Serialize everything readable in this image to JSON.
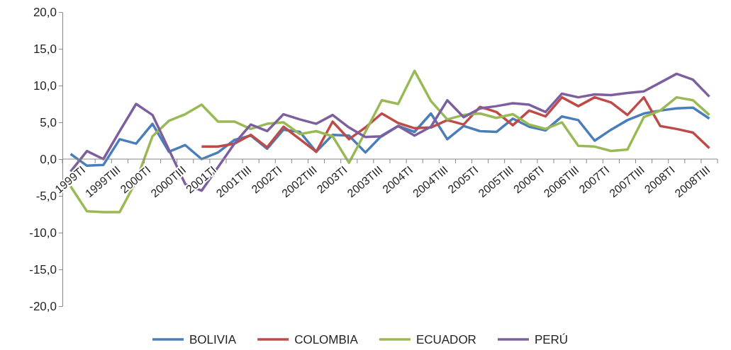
{
  "chart_data": {
    "type": "line",
    "categories": [
      "1999TI",
      null,
      "1999TIII",
      null,
      "2000TI",
      null,
      "2000TIII",
      null,
      "2001TI",
      null,
      "2001TIII",
      null,
      "2002TI",
      null,
      "2002TIII",
      null,
      "2003TI",
      null,
      "2003TIII",
      null,
      "2004TI",
      null,
      "2004TIII",
      null,
      "2005TI",
      null,
      "2005TIII",
      null,
      "2006TI",
      null,
      "2006TIII",
      null,
      "2007TI",
      null,
      "2007TIII",
      null,
      "2008TI",
      null,
      "2008TIII",
      null
    ],
    "series": [
      {
        "name": "BOLIVIA",
        "color": "#4a7ebb",
        "values": [
          0.7,
          -0.9,
          -0.8,
          2.7,
          2.1,
          4.8,
          1.0,
          1.9,
          0.0,
          0.9,
          2.6,
          3.2,
          1.4,
          4.0,
          3.7,
          1.0,
          3.3,
          3.2,
          0.9,
          3.2,
          4.5,
          3.7,
          6.2,
          2.7,
          4.5,
          3.8,
          3.7,
          5.5,
          4.4,
          3.9,
          5.8,
          5.3,
          2.5,
          4.0,
          5.3,
          6.2,
          6.6,
          6.9,
          7.0,
          5.5
        ]
      },
      {
        "name": "COLOMBIA",
        "color": "#be4b48",
        "values": [
          null,
          null,
          null,
          null,
          null,
          null,
          null,
          null,
          1.7,
          1.7,
          2.1,
          3.3,
          1.6,
          4.4,
          2.7,
          1.0,
          5.1,
          2.7,
          4.3,
          6.2,
          4.9,
          4.2,
          4.3,
          5.3,
          4.7,
          7.1,
          6.4,
          4.6,
          6.6,
          5.8,
          8.4,
          7.2,
          8.4,
          7.7,
          6.0,
          8.4,
          4.5,
          4.1,
          3.6,
          1.5
        ]
      },
      {
        "name": "ECUADOR",
        "color": "#98b954",
        "values": [
          -3.7,
          -7.1,
          -7.2,
          -7.2,
          -3.0,
          3.1,
          5.2,
          6.1,
          7.4,
          5.1,
          5.1,
          4.1,
          4.8,
          5.0,
          3.4,
          3.8,
          3.1,
          -0.5,
          3.7,
          8.0,
          7.5,
          12.0,
          7.9,
          5.4,
          6.0,
          6.2,
          5.6,
          6.1,
          4.7,
          4.1,
          5.0,
          1.8,
          1.7,
          1.1,
          1.3,
          5.7,
          6.6,
          8.4,
          8.0,
          6.0
        ]
      },
      {
        "name": "PERÚ",
        "color": "#7d5fa0",
        "values": [
          -1.7,
          1.1,
          0.0,
          3.8,
          7.5,
          6.0,
          1.3,
          -3.4,
          -4.3,
          -1.1,
          2.1,
          4.7,
          3.8,
          6.1,
          5.4,
          4.8,
          6.0,
          4.3,
          3.0,
          3.1,
          4.5,
          3.2,
          4.4,
          8.0,
          5.7,
          6.9,
          7.2,
          7.6,
          7.4,
          6.4,
          8.9,
          8.4,
          8.8,
          8.7,
          9.0,
          9.2,
          10.4,
          11.6,
          10.8,
          8.5
        ]
      }
    ],
    "ylim": [
      -20,
      20
    ],
    "yticks": [
      {
        "value": -20,
        "label": "-20,0"
      },
      {
        "value": -15,
        "label": "-15,0"
      },
      {
        "value": -10,
        "label": "-10,0"
      },
      {
        "value": -5,
        "label": "-5,0"
      },
      {
        "value": 0,
        "label": "0,0"
      },
      {
        "value": 5,
        "label": "5,0"
      },
      {
        "value": 10,
        "label": "10,0"
      },
      {
        "value": 15,
        "label": "15,0"
      },
      {
        "value": 20,
        "label": "20,0"
      }
    ],
    "grid": false,
    "legend": "bottom",
    "marker": "none",
    "line_style": "solid"
  }
}
